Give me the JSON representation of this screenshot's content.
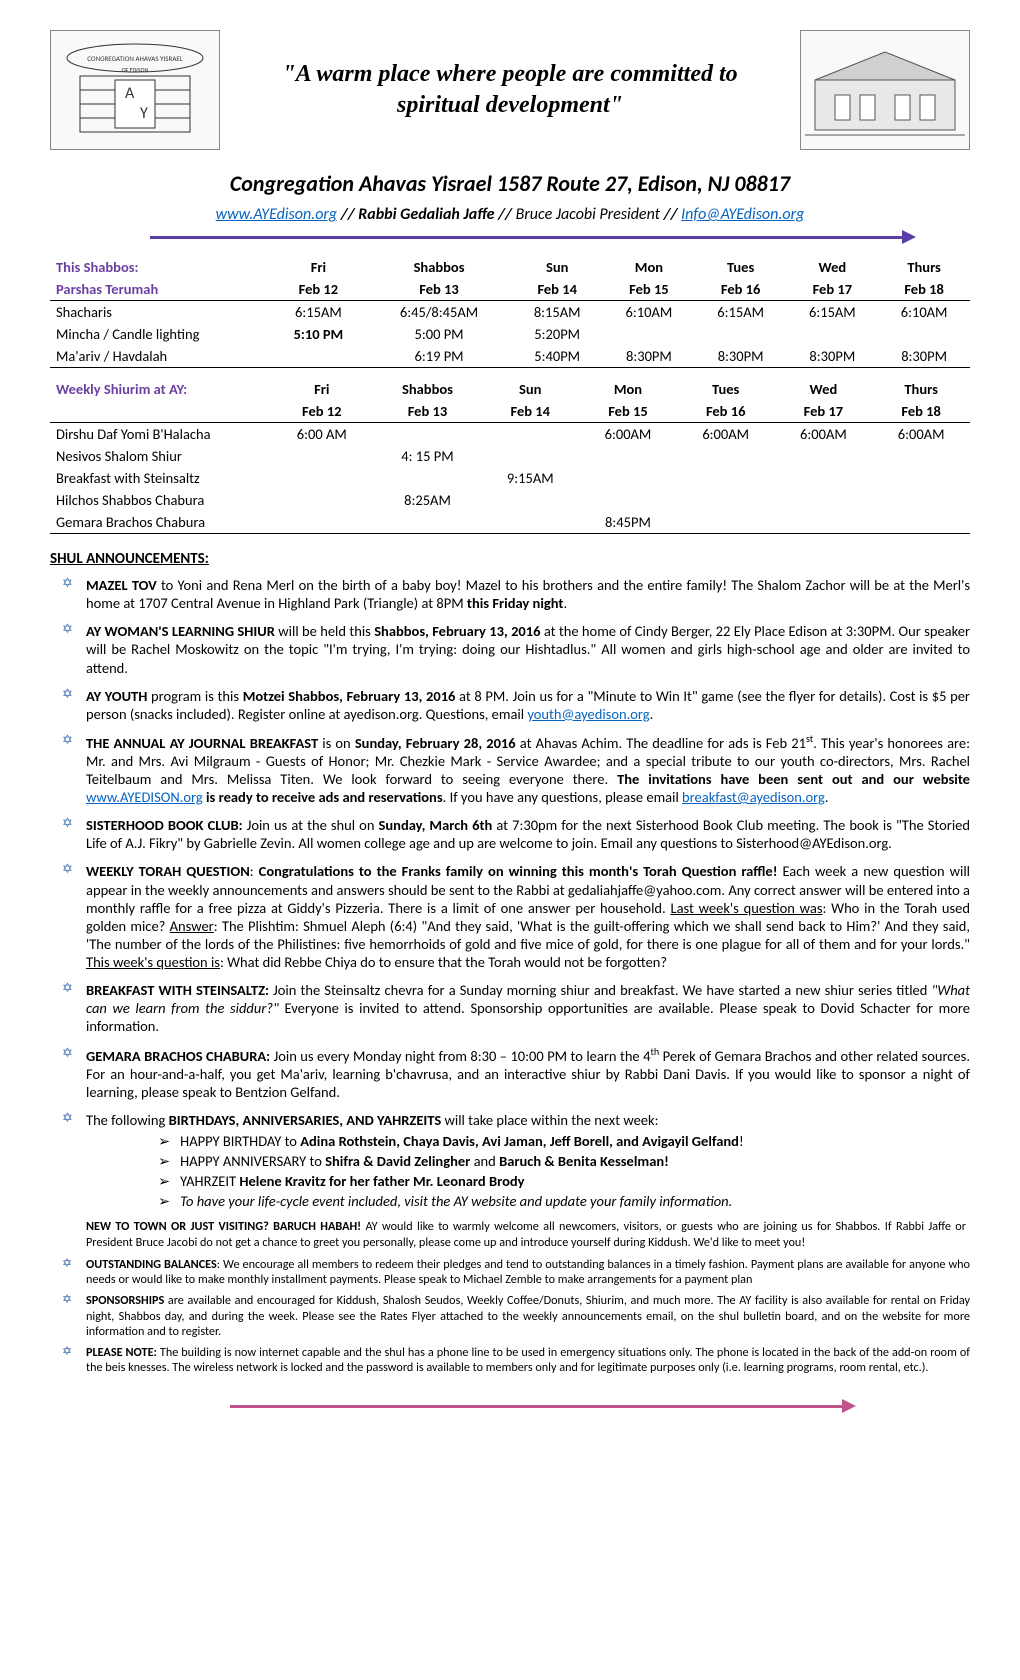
{
  "header": {
    "tagline": "\"A warm place where people are committed to spiritual development\"",
    "title": "Congregation Ahavas Yisrael    1587 Route 27, Edison, NJ  08817",
    "website_url": "www.AYEdison.org",
    "middle_text": " // Rabbi Gedaliah Jaffe // ",
    "president_text": "Bruce Jacobi President",
    "sep2": "// ",
    "info_email": "Info@AYEdison.org"
  },
  "schedule1": {
    "left_label1": "This Shabbos:",
    "left_label2": "Parshas Terumah",
    "days": [
      "Fri",
      "Shabbos",
      "Sun",
      "Mon",
      "Tues",
      "Wed",
      "Thurs"
    ],
    "dates": [
      "Feb 12",
      "Feb 13",
      "Feb 14",
      "Feb 15",
      "Feb 16",
      "Feb 17",
      "Feb 18"
    ],
    "rows": [
      {
        "label": "Shacharis",
        "cells": [
          "6:15AM",
          "6:45/8:45AM",
          "8:15AM",
          "6:10AM",
          "6:15AM",
          "6:15AM",
          "6:10AM"
        ]
      },
      {
        "label": "Mincha / Candle lighting",
        "cells": [
          "5:10 PM",
          "5:00 PM",
          "5:20PM",
          "",
          "",
          "",
          ""
        ]
      },
      {
        "label": "Ma'ariv / Havdalah",
        "cells": [
          "",
          "6:19 PM",
          "5:40PM",
          "8:30PM",
          "8:30PM",
          "8:30PM",
          "8:30PM"
        ]
      }
    ]
  },
  "schedule2": {
    "left_label1": "Weekly Shiurim at AY:",
    "days": [
      "Fri",
      "Shabbos",
      "Sun",
      "Mon",
      "Tues",
      "Wed",
      "Thurs"
    ],
    "dates": [
      "Feb 12",
      "Feb 13",
      "Feb 14",
      "Feb 15",
      "Feb 16",
      "Feb 17",
      "Feb 18"
    ],
    "rows": [
      {
        "label": "Dirshu Daf Yomi B'Halacha",
        "cells": [
          "6:00 AM",
          "",
          "",
          "6:00AM",
          "6:00AM",
          "6:00AM",
          "6:00AM"
        ]
      },
      {
        "label": "Nesivos Shalom Shiur",
        "cells": [
          "",
          "4: 15 PM",
          "",
          "",
          "",
          "",
          ""
        ]
      },
      {
        "label": "Breakfast with Steinsaltz",
        "cells": [
          "",
          "",
          "9:15AM",
          "",
          "",
          "",
          ""
        ]
      },
      {
        "label": "Hilchos Shabbos Chabura",
        "cells": [
          "",
          "8:25AM",
          "",
          "",
          "",
          "",
          ""
        ]
      },
      {
        "label": "Gemara Brachos Chabura",
        "cells": [
          "",
          "",
          "",
          "8:45PM",
          "",
          "",
          ""
        ]
      }
    ]
  },
  "announcements_heading": "SHUL ANNOUNCEMENTS:",
  "ann": {
    "a1": "<b>MAZEL TOV</b> to Yoni and Rena Merl on the birth of a baby boy! Mazel to his brothers and the entire family! The Shalom Zachor will be at the Merl's home at 1707 Central Avenue in Highland Park (Triangle) at 8PM <b>this Friday night</b>.",
    "a2": "<b>AY WOMAN'S LEARNING SHIUR</b> will be held this <b>Shabbos, February 13, 2016</b> at the home of Cindy Berger, 22 Ely Place Edison at 3:30PM. Our speaker will be Rachel Moskowitz on the topic \"I'm trying, I'm trying: doing our Hishtadlus.\" All women and girls high-school age and older are invited to attend.",
    "a3": "<b>AY YOUTH</b> program is this <b>Motzei Shabbos, February 13, 2016</b> at 8 PM. Join us for a \"Minute to Win It\" game (see the flyer for details). Cost is $5 per person (snacks included).  Register online at ayedison.org.  Questions, email <a href='#'>youth@ayedison.org</a>.",
    "a4": "<b>THE ANNUAL AY JOURNAL BREAKFAST</b> is on <b>Sunday, February 28, 2016</b> at Ahavas Achim. The deadline for ads is Feb 21<sup>st</sup>. This year's honorees are: Mr. and Mrs. Avi Milgraum - Guests of Honor; Mr. Chezkie Mark - Service Awardee; and a special tribute to our youth co-directors, Mrs. Rachel Teitelbaum and Mrs. Melissa Titen. We look forward to seeing everyone there. <b>The invitations have been sent out and our website</b> <a href='#'>www.AYEDISON.org</a> <b>is ready to receive ads and reservations</b>. If you have any questions, please email <a href='#'>breakfast@ayedison.org</a>.",
    "a5": "<b>SISTERHOOD BOOK CLUB:</b> Join us at the shul on <b>Sunday, March 6th</b> at 7:30pm for the next Sisterhood Book Club meeting. The book is \"The Storied Life of A.J. Fikry\" by Gabrielle Zevin. All women college age and up are welcome to join. Email any questions to Sisterhood@AYEdison.org.",
    "a6": "<b>WEEKLY TORAH QUESTION</b>: <b>Congratulations to the Franks family on winning this month's Torah Question raffle!</b>  Each week a new question will appear in the weekly announcements and answers should be sent to the Rabbi at gedaliahjaffe@yahoo.com. Any correct answer will be entered into a monthly raffle for a free pizza at Giddy's Pizzeria. There is a limit of one answer per household. <u>Last week's question was</u>: Who in the Torah used golden mice? <u>Answer</u>: The Plishtim: Shmuel Aleph (6:4) \"And they said, 'What is the guilt-offering which we shall send back to Him?' And they said, 'The number of the lords of the Philistines: five hemorrhoids of gold and five mice of gold, for there is one plague for all of them and for your lords.\"  <u>This week's question is</u>: What did Rebbe Chiya do to ensure that the Torah would not be forgotten?",
    "a7": "<b>BREAKFAST WITH STEINSALTZ:</b> Join the Steinsaltz chevra for a Sunday morning shiur and breakfast. We have started a new shiur series titled <i>\"What can we learn from the siddur?\"</i> Everyone is invited to attend. Sponsorship opportunities are available. Please speak to Dovid Schacter for more information.",
    "a8": "<b>GEMARA BRACHOS CHABURA:</b> Join us every Monday night from 8:30 – 10:00 PM to learn the 4<sup>th</sup> Perek of Gemara Brachos and other related sources. For an hour-and-a-half, you get Ma'ariv, learning b'chavrusa, and an interactive shiur by Rabbi Dani Davis. If you would like to sponsor a night of learning, please speak to Bentzion Gelfand.",
    "a9": "The following <b>BIRTHDAYS, ANNIVERSARIES, AND YAHRZEITS</b> will take place within the next week:"
  },
  "sublist": {
    "s1": "HAPPY BIRTHDAY to <b>Adina Rothstein, Chaya Davis, Avi Jaman, Jeff Borell, and Avigayil Gelfand</b>!",
    "s2": "HAPPY ANNIVERSARY to <b>Shifra & David Zelingher</b> and <b>Baruch & Benita Kesselman!</b>",
    "s3": "YAHRZEIT <b>Helene Kravitz for her father Mr. Leonard Brody</b>",
    "s4": "<i>To have your life-cycle event included, visit the AY website and update your family information.</i>"
  },
  "fineprint_intro": "<b>NEW TO TOWN OR JUST VISITING? BARUCH HABAH!</b> AY would like to warmly welcome all newcomers, visitors, or guests who are joining us for Shabbos. If Rabbi Jaffe or President Bruce Jacobi do not get a chance to greet you personally, please come up and introduce yourself during Kiddush. We'd like to meet you!",
  "fine": {
    "f1": "<b>OUTSTANDING BALANCES</b>: We encourage all members to redeem their pledges and tend to outstanding balances in a timely fashion. Payment   plans are available for anyone who needs or would like to make monthly installment payments. Please speak to Michael Zemble to make arrangements for a payment plan",
    "f2": "<b>SPONSORSHIPS</b> are available and encouraged for Kiddush, Shalosh Seudos, Weekly Coffee/Donuts, Shiurim, and much more. The AY facility is also available for rental on Friday night, Shabbos day, and during the week. Please see the Rates Flyer attached to the weekly announcements email, on the shul bulletin board, and on the website for more information and to register.",
    "f3": "<b>PLEASE NOTE:</b> The building is now internet capable and the shul has a phone line to be used in emergency situations only. The phone is located in the back of the add-on room of the beis knesses. The wireless network is locked and the password is available to members only and for legitimate purposes only (i.e. learning programs, room rental, etc.)."
  },
  "colors": {
    "purple_header": "#6b3fa0",
    "arrow_top": "#5b3ea5",
    "arrow_bottom": "#c0548b",
    "link": "#0563c1",
    "star": "#3d6bb3"
  }
}
